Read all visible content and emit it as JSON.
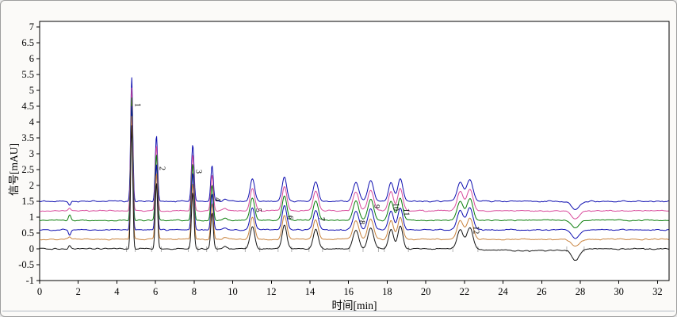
{
  "panel": {
    "background": "#fbfaf8",
    "plot_background": "#ffffff",
    "frame_color": "#000000",
    "border_color": "#9e9e9e",
    "divider_color": "#b3bac4",
    "tick_color": "#000000",
    "tick_label_color": "#000000",
    "integration_mark_color": "#b2b2b2",
    "peak_label_color": "#000000"
  },
  "chart_data": {
    "type": "line",
    "title": "",
    "xlabel": "时间[min]",
    "ylabel": "信号[mAU]",
    "xlim": [
      0,
      32.6
    ],
    "ylim": [
      -1,
      7.175
    ],
    "xticks": [
      0,
      2,
      4,
      6,
      8,
      10,
      12,
      14,
      16,
      18,
      20,
      22,
      24,
      26,
      28,
      30,
      32
    ],
    "yticks": [
      7,
      6.5,
      6,
      5.5,
      5,
      4.5,
      4,
      3.5,
      3,
      2.5,
      2,
      1.5,
      1,
      0.5,
      0,
      -0.5,
      -1
    ],
    "grid": false,
    "legend": false,
    "noise_amp": 0.024,
    "noise_wavelength": 0.2,
    "artifact": {
      "t": 1.55,
      "sigma": 0.06
    },
    "dip": {
      "t": 27.75,
      "sigma": 0.2,
      "depth": 0.26
    },
    "peaks": [
      {
        "label": "1",
        "t": 4.77,
        "height": 3.88,
        "sigma": 0.055,
        "label_t": 4.95,
        "label_v": 4.6
      },
      {
        "label": "2",
        "t": 6.05,
        "height": 2.08,
        "sigma": 0.06,
        "label_t": 6.22,
        "label_v": 2.6
      },
      {
        "label": "3",
        "t": 7.93,
        "height": 1.78,
        "sigma": 0.065,
        "label_t": 8.1,
        "label_v": 2.5
      },
      {
        "label": "4",
        "t": 8.93,
        "height": 1.12,
        "sigma": 0.065,
        "label_t": 9.1,
        "label_v": 1.62
      },
      {
        "label": "",
        "t": 9.6,
        "height": 0.07,
        "sigma": 0.1,
        "label_t": 0,
        "label_v": 0
      },
      {
        "label": "5",
        "t": 11.02,
        "height": 0.7,
        "sigma": 0.12,
        "label_t": 11.2,
        "label_v": 1.28
      },
      {
        "label": "6",
        "t": 12.68,
        "height": 0.76,
        "sigma": 0.12,
        "label_t": 12.86,
        "label_v": 1.05
      },
      {
        "label": "7",
        "t": 14.3,
        "height": 0.62,
        "sigma": 0.13,
        "label_t": 14.48,
        "label_v": 1.0
      },
      {
        "label": "8",
        "t": 16.38,
        "height": 0.6,
        "sigma": 0.15,
        "label_t": 16.56,
        "label_v": 0.9
      },
      {
        "label": "9",
        "t": 17.15,
        "height": 0.65,
        "sigma": 0.15,
        "label_t": 17.33,
        "label_v": 1.4
      },
      {
        "label": "10",
        "t": 18.2,
        "height": 0.6,
        "sigma": 0.13,
        "label_t": 18.34,
        "label_v": 1.45
      },
      {
        "label": "11",
        "t": 18.68,
        "height": 0.7,
        "sigma": 0.13,
        "label_t": 18.86,
        "label_v": 1.28
      },
      {
        "label": "",
        "t": 21.78,
        "height": 0.6,
        "sigma": 0.16,
        "label_t": 0,
        "label_v": 0
      },
      {
        "label": "12",
        "t": 22.28,
        "height": 0.68,
        "sigma": 0.16,
        "label_t": 22.48,
        "label_v": 0.72
      }
    ],
    "integration_marks": [
      4.5,
      4.95,
      5.8,
      6.3,
      7.7,
      8.2,
      8.65,
      9.2,
      10.65,
      11.4,
      12.35,
      13.05,
      13.95,
      14.65,
      16.05,
      16.75,
      17.55,
      17.85,
      19.1,
      21.4,
      22.7,
      27.3,
      28.2
    ],
    "series": [
      {
        "name": "trace-blue-1",
        "color": "#0d0db0",
        "baseline": 1.5,
        "seed": 1,
        "artifact_amp": -0.13,
        "dip_scale": 1.0
      },
      {
        "name": "trace-pink",
        "color": "#d84a9b",
        "baseline": 1.2,
        "seed": 2,
        "artifact_amp": 0.09,
        "dip_scale": 1.0
      },
      {
        "name": "trace-green",
        "color": "#0a7d0a",
        "baseline": 0.9,
        "seed": 3,
        "artifact_amp": 0.17,
        "dip_scale": 0.95
      },
      {
        "name": "trace-blue-2",
        "color": "#0d0db0",
        "baseline": 0.6,
        "seed": 4,
        "artifact_amp": -0.16,
        "dip_scale": 1.05
      },
      {
        "name": "trace-orange",
        "color": "#c8823c",
        "baseline": 0.3,
        "seed": 5,
        "artifact_amp": 0.07,
        "dip_scale": 0.85
      },
      {
        "name": "trace-black",
        "color": "#141414",
        "baseline": 0.0,
        "seed": 6,
        "artifact_amp": 0.1,
        "dip_scale": 1.3,
        "sag": {
          "t": 25.3,
          "sigma": 1.6,
          "depth": 0.06
        }
      }
    ]
  }
}
